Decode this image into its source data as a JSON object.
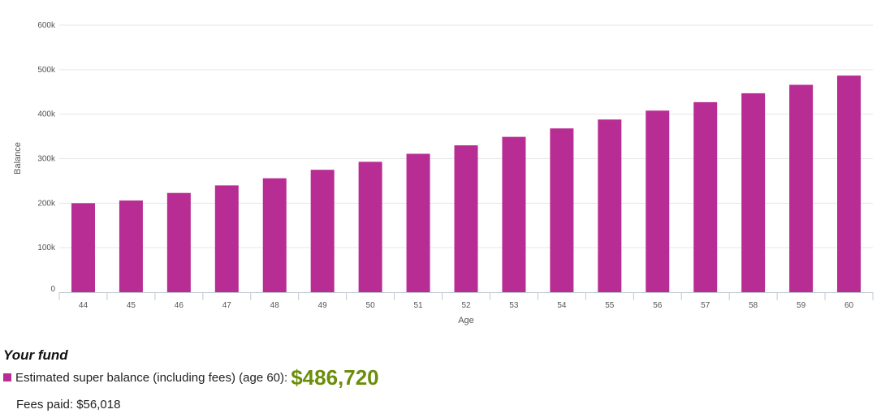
{
  "chart_data": {
    "type": "bar",
    "categories": [
      "44",
      "45",
      "46",
      "47",
      "48",
      "49",
      "50",
      "51",
      "52",
      "53",
      "54",
      "55",
      "56",
      "57",
      "58",
      "59",
      "60"
    ],
    "values": [
      200000,
      206000,
      223000,
      240000,
      256000,
      275000,
      293000,
      311000,
      330000,
      349000,
      368000,
      388000,
      408000,
      427000,
      447000,
      466000,
      486720
    ],
    "xlabel": "Age",
    "ylabel": "Balance",
    "ylim": [
      0,
      600000
    ],
    "yticks": [
      0,
      100000,
      200000,
      300000,
      400000,
      500000,
      600000
    ],
    "ytick_labels": [
      "0",
      "100k",
      "200k",
      "300k",
      "400k",
      "500k",
      "600k"
    ],
    "grid": true,
    "bar_color": "#b82d93"
  },
  "legend": {
    "title": "Your fund",
    "label": "Estimated super balance (including fees) (age 60):",
    "value": "$486,720",
    "value_color": "#6b8e0a",
    "fees": "Fees paid: $56,018"
  }
}
